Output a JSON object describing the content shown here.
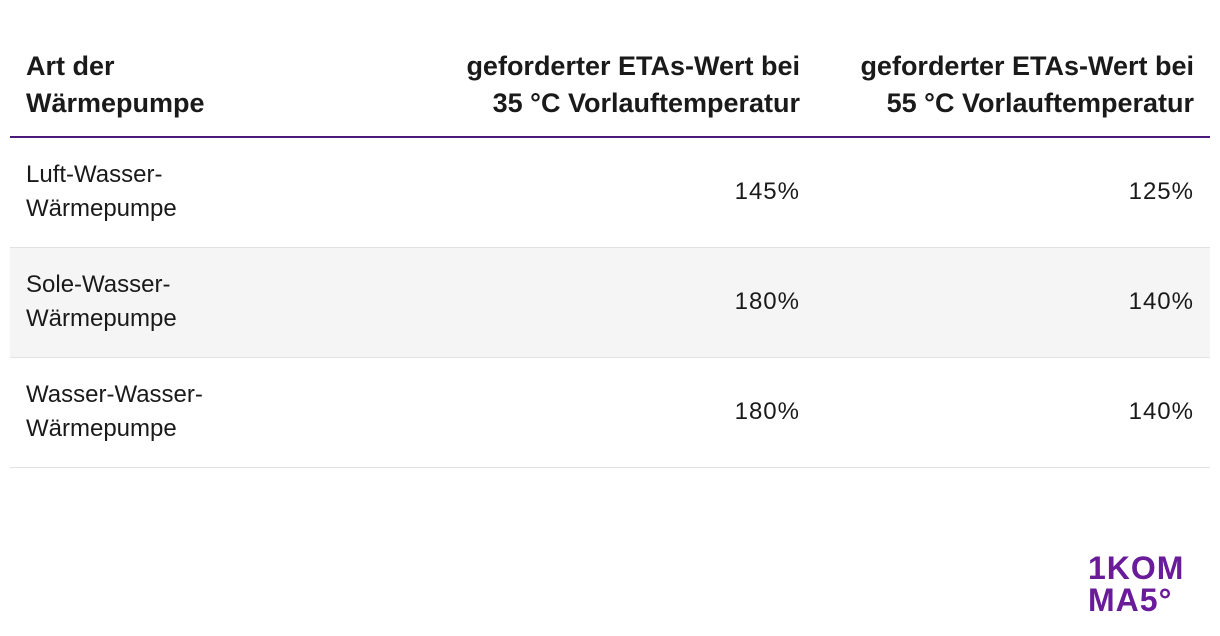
{
  "table": {
    "header": [
      "Art der Wärmepumpe",
      "geforderter ETAs-Wert bei 35 °C Vorlauftemperatur",
      "geforderter ETAs-Wert bei 55 °C Vorlauftemperatur"
    ],
    "rows": [
      [
        "Luft-Wasser-Wärmepumpe",
        "145%",
        "125%"
      ],
      [
        "Sole-Wasser-Wärmepumpe",
        "180%",
        "140%"
      ],
      [
        "Wasser-Wasser-Wärmepumpe",
        "180%",
        "140%"
      ]
    ]
  },
  "logo": {
    "lines": [
      "1KOM",
      "MA5°"
    ]
  }
}
